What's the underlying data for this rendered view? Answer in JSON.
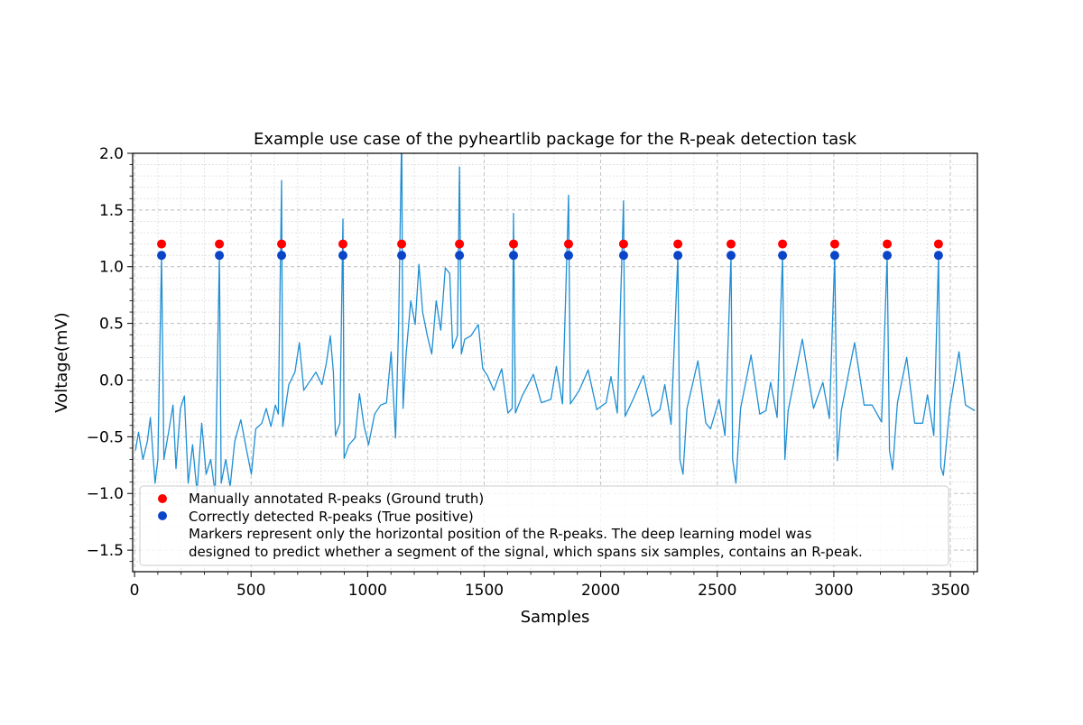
{
  "chart_data": {
    "type": "line",
    "title": "Example use case of the pyheartlib package for the R-peak detection task",
    "xlabel": "Samples",
    "ylabel": "Voltage(mV)",
    "xlim": [
      -8,
      3616
    ],
    "ylim": [
      -1.69,
      2.0
    ],
    "xticks": [
      0,
      500,
      1000,
      1500,
      2000,
      2500,
      3000,
      3500
    ],
    "xtick_labels": [
      "0",
      "500",
      "1000",
      "1500",
      "2000",
      "2500",
      "3000",
      "3500"
    ],
    "yticks": [
      -1.5,
      -1.0,
      -0.5,
      0.0,
      0.5,
      1.0,
      1.5,
      2.0
    ],
    "ytick_labels": [
      "−1.5",
      "−1.0",
      "−0.5",
      "0.0",
      "0.5",
      "1.0",
      "1.5",
      "2.0"
    ],
    "grid": "major dashed + minor dotted",
    "legend_placement": "lower-left",
    "colors": {
      "signal": "#1f8fd4",
      "ground_truth": "#ff0000",
      "true_positive": "#0a45c8"
    },
    "signal": {
      "x": [
        4,
        17,
        36,
        55,
        68,
        88,
        100,
        116,
        126,
        146,
        165,
        178,
        197,
        214,
        230,
        249,
        268,
        288,
        307,
        327,
        346,
        364,
        372,
        391,
        410,
        430,
        456,
        481,
        501,
        520,
        546,
        565,
        585,
        604,
        617,
        631,
        636,
        662,
        688,
        707,
        726,
        752,
        778,
        804,
        823,
        840,
        853,
        862,
        881,
        894,
        899,
        920,
        946,
        965,
        985,
        1004,
        1030,
        1056,
        1081,
        1101,
        1120,
        1133,
        1146,
        1152,
        1165,
        1185,
        1204,
        1220,
        1236,
        1256,
        1275,
        1294,
        1314,
        1333,
        1352,
        1365,
        1385,
        1394,
        1402,
        1417,
        1443,
        1475,
        1494,
        1514,
        1541,
        1575,
        1602,
        1620,
        1626,
        1634,
        1663,
        1711,
        1745,
        1786,
        1810,
        1836,
        1862,
        1870,
        1908,
        1946,
        1983,
        2023,
        2044,
        2071,
        2098,
        2105,
        2139,
        2183,
        2220,
        2254,
        2275,
        2302,
        2331,
        2340,
        2353,
        2370,
        2417,
        2451,
        2471,
        2508,
        2533,
        2559,
        2566,
        2580,
        2600,
        2645,
        2682,
        2709,
        2729,
        2757,
        2780,
        2790,
        2804,
        2865,
        2913,
        2953,
        2981,
        3004,
        3015,
        3032,
        3089,
        3130,
        3164,
        3205,
        3229,
        3239,
        3252,
        3273,
        3313,
        3347,
        3381,
        3402,
        3429,
        3449,
        3459,
        3470,
        3497,
        3537,
        3565,
        3605
      ],
      "y": [
        -0.62,
        -0.46,
        -0.7,
        -0.54,
        -0.33,
        -0.91,
        -0.7,
        1.1,
        -0.7,
        -0.46,
        -0.22,
        -0.78,
        -0.25,
        -0.14,
        -0.91,
        -0.57,
        -0.99,
        -0.38,
        -0.83,
        -0.7,
        -1.0,
        1.1,
        -0.91,
        -0.7,
        -0.94,
        -0.54,
        -0.35,
        -0.62,
        -0.83,
        -0.43,
        -0.38,
        -0.25,
        -0.41,
        -0.22,
        -0.3,
        1.76,
        -0.41,
        -0.04,
        0.07,
        0.33,
        -0.09,
        -0.01,
        0.07,
        -0.04,
        0.15,
        0.39,
        0.07,
        -0.49,
        -0.38,
        1.42,
        -0.69,
        -0.57,
        -0.51,
        -0.12,
        -0.41,
        -0.57,
        -0.3,
        -0.22,
        -0.2,
        0.25,
        -0.51,
        0.49,
        2.2,
        -0.25,
        0.23,
        0.7,
        0.49,
        1.02,
        0.6,
        0.39,
        0.23,
        0.7,
        0.44,
        0.99,
        0.94,
        0.28,
        0.39,
        1.88,
        0.23,
        0.36,
        0.39,
        0.49,
        0.1,
        0.04,
        -0.09,
        0.1,
        -0.29,
        -0.25,
        1.47,
        -0.29,
        -0.14,
        0.05,
        -0.2,
        -0.17,
        0.12,
        -0.21,
        1.63,
        -0.21,
        -0.09,
        0.09,
        -0.26,
        -0.2,
        0.03,
        -0.29,
        1.58,
        -0.32,
        -0.17,
        0.04,
        -0.32,
        -0.26,
        -0.04,
        -0.39,
        1.1,
        -0.7,
        -0.83,
        -0.25,
        0.17,
        -0.38,
        -0.43,
        -0.17,
        -0.49,
        1.1,
        -0.7,
        -0.91,
        -0.25,
        0.22,
        -0.3,
        -0.27,
        -0.02,
        -0.33,
        1.1,
        -0.7,
        -0.27,
        0.36,
        -0.25,
        -0.02,
        -0.34,
        1.1,
        -0.71,
        -0.27,
        0.33,
        -0.22,
        -0.22,
        -0.37,
        1.1,
        -0.62,
        -0.79,
        -0.2,
        0.2,
        -0.38,
        -0.38,
        -0.13,
        -0.49,
        1.1,
        -0.77,
        -0.84,
        -0.25,
        0.25,
        -0.22,
        -0.27
      ]
    },
    "ground_truth_peaks": {
      "x": [
        116,
        364,
        631,
        894,
        1146,
        1394,
        1626,
        1862,
        2098,
        2331,
        2559,
        2780,
        3004,
        3229,
        3449
      ],
      "y": 1.2
    },
    "detected_peaks": {
      "x": [
        116,
        364,
        631,
        894,
        1146,
        1394,
        1626,
        1862,
        2098,
        2331,
        2559,
        2780,
        3004,
        3229,
        3449
      ],
      "y": 1.1
    },
    "legend": [
      "Manually annotated R-peaks (Ground truth)",
      "Correctly detected R-peaks (True positive)",
      "Markers represent only the horizontal position of the R-peaks. The deep learning model was",
      "designed to predict whether a segment of the signal, which spans six samples, contains an R-peak."
    ]
  }
}
